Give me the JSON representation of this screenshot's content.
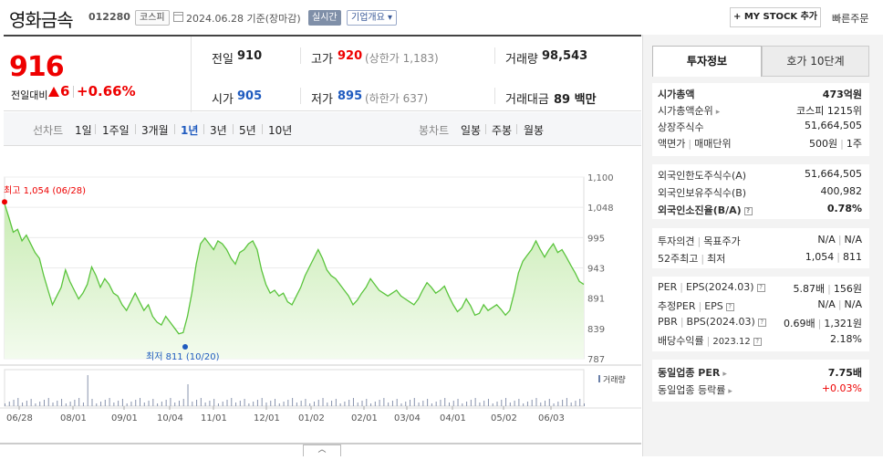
{
  "header": {
    "name": "영화금속",
    "code": "012280",
    "market_badge": "코스피",
    "date": "2024.06.28 기준(장마감)",
    "realtime": "실시간",
    "company_info": "기업개요",
    "my_stock": "+ MY STOCK 추가",
    "quick_order": "빠른주문"
  },
  "summary": {
    "price": "916",
    "change_label": "전일대비",
    "change_value": "6",
    "change_pct": "+0.66%",
    "prev_label": "전일",
    "prev": "910",
    "high_label": "고가",
    "high": "920",
    "upper": "(상한가 1,183)",
    "volume_label": "거래량",
    "volume": "98,543",
    "open_label": "시가",
    "open": "905",
    "low_label": "저가",
    "low": "895",
    "lower": "(하한가 637)",
    "amount_label": "거래대금",
    "amount": "89 백만"
  },
  "periods": {
    "line_label": "선차트",
    "line_items": [
      "1일",
      "1주일",
      "3개월",
      "1년",
      "3년",
      "5년",
      "10년"
    ],
    "active": "1년",
    "candle_label": "봉차트",
    "candle_items": [
      "일봉",
      "주봉",
      "월봉"
    ]
  },
  "chart_data": {
    "type": "area",
    "y_ticks": [
      "1,100",
      "1,048",
      "995",
      "943",
      "891",
      "839",
      "787"
    ],
    "ylim": [
      787,
      1100
    ],
    "x_ticks": [
      "06/28",
      "08/01",
      "09/01",
      "10/04",
      "11/01",
      "12/01",
      "01/02",
      "02/01",
      "03/04",
      "04/01",
      "05/02",
      "06/03"
    ],
    "max_annotation": "최고 1,054 (06/28)",
    "min_annotation": "최저 811 (10/20)",
    "volume_label": "거래량",
    "values": [
      1054,
      1030,
      1005,
      1010,
      990,
      1000,
      985,
      970,
      960,
      930,
      905,
      880,
      895,
      910,
      940,
      920,
      905,
      890,
      900,
      915,
      945,
      930,
      910,
      925,
      915,
      900,
      895,
      880,
      870,
      885,
      900,
      885,
      870,
      880,
      860,
      850,
      845,
      860,
      850,
      840,
      830,
      832,
      860,
      900,
      950,
      985,
      995,
      985,
      975,
      990,
      985,
      975,
      960,
      950,
      970,
      975,
      985,
      990,
      975,
      940,
      915,
      900,
      905,
      895,
      900,
      885,
      880,
      895,
      910,
      930,
      945,
      960,
      975,
      960,
      940,
      930,
      925,
      915,
      905,
      895,
      880,
      888,
      900,
      910,
      925,
      915,
      905,
      900,
      895,
      900,
      905,
      895,
      890,
      885,
      880,
      890,
      905,
      918,
      910,
      900,
      905,
      912,
      895,
      880,
      868,
      875,
      890,
      878,
      862,
      865,
      880,
      870,
      875,
      880,
      872,
      862,
      870,
      900,
      935,
      955,
      965,
      975,
      990,
      975,
      962,
      975,
      985,
      970,
      975,
      962,
      948,
      935,
      920,
      915
    ]
  },
  "right_panel": {
    "tab_info": "투자정보",
    "tab_order": "호가 10단계",
    "market_cap_label": "시가총액",
    "market_cap": "473억원",
    "rank_label": "시가총액순위",
    "rank": "코스피 1215위",
    "shares_label": "상장주식수",
    "shares": "51,664,505",
    "par_label": "액면가",
    "unit_label": "매매단위",
    "par": "500원",
    "unit": "1주",
    "foreign_limit_label": "외국인한도주식수(A)",
    "foreign_limit": "51,664,505",
    "foreign_hold_label": "외국인보유주식수(B)",
    "foreign_hold": "400,982",
    "foreign_rate_label": "외국인소진율(B/A)",
    "foreign_rate": "0.78%",
    "opinion_label": "투자의견",
    "target_label": "목표주가",
    "opinion": "N/A",
    "target": "N/A",
    "w52_label": "52주최고",
    "w52_low_label": "최저",
    "w52_high": "1,054",
    "w52_low": "811",
    "per_label": "PER",
    "eps_label": "EPS(2024.03)",
    "per": "5.87배",
    "eps": "156원",
    "est_per_label": "추정PER",
    "est_eps_label": "EPS",
    "est_per": "N/A",
    "est_eps": "N/A",
    "pbr_label": "PBR",
    "bps_label": "BPS(2024.03)",
    "pbr": "0.69배",
    "bps": "1,321원",
    "div_label": "배당수익률",
    "div_date": "2023.12",
    "div": "2.18%",
    "ind_per_label": "동일업종 PER",
    "ind_per": "7.75배",
    "ind_rate_label": "동일업종 등락률",
    "ind_rate": "+0.03%"
  },
  "colors": {
    "up": "#e00000",
    "down": "#1f5bbf",
    "line": "#5ac43c",
    "fill": "#e4f5da"
  }
}
